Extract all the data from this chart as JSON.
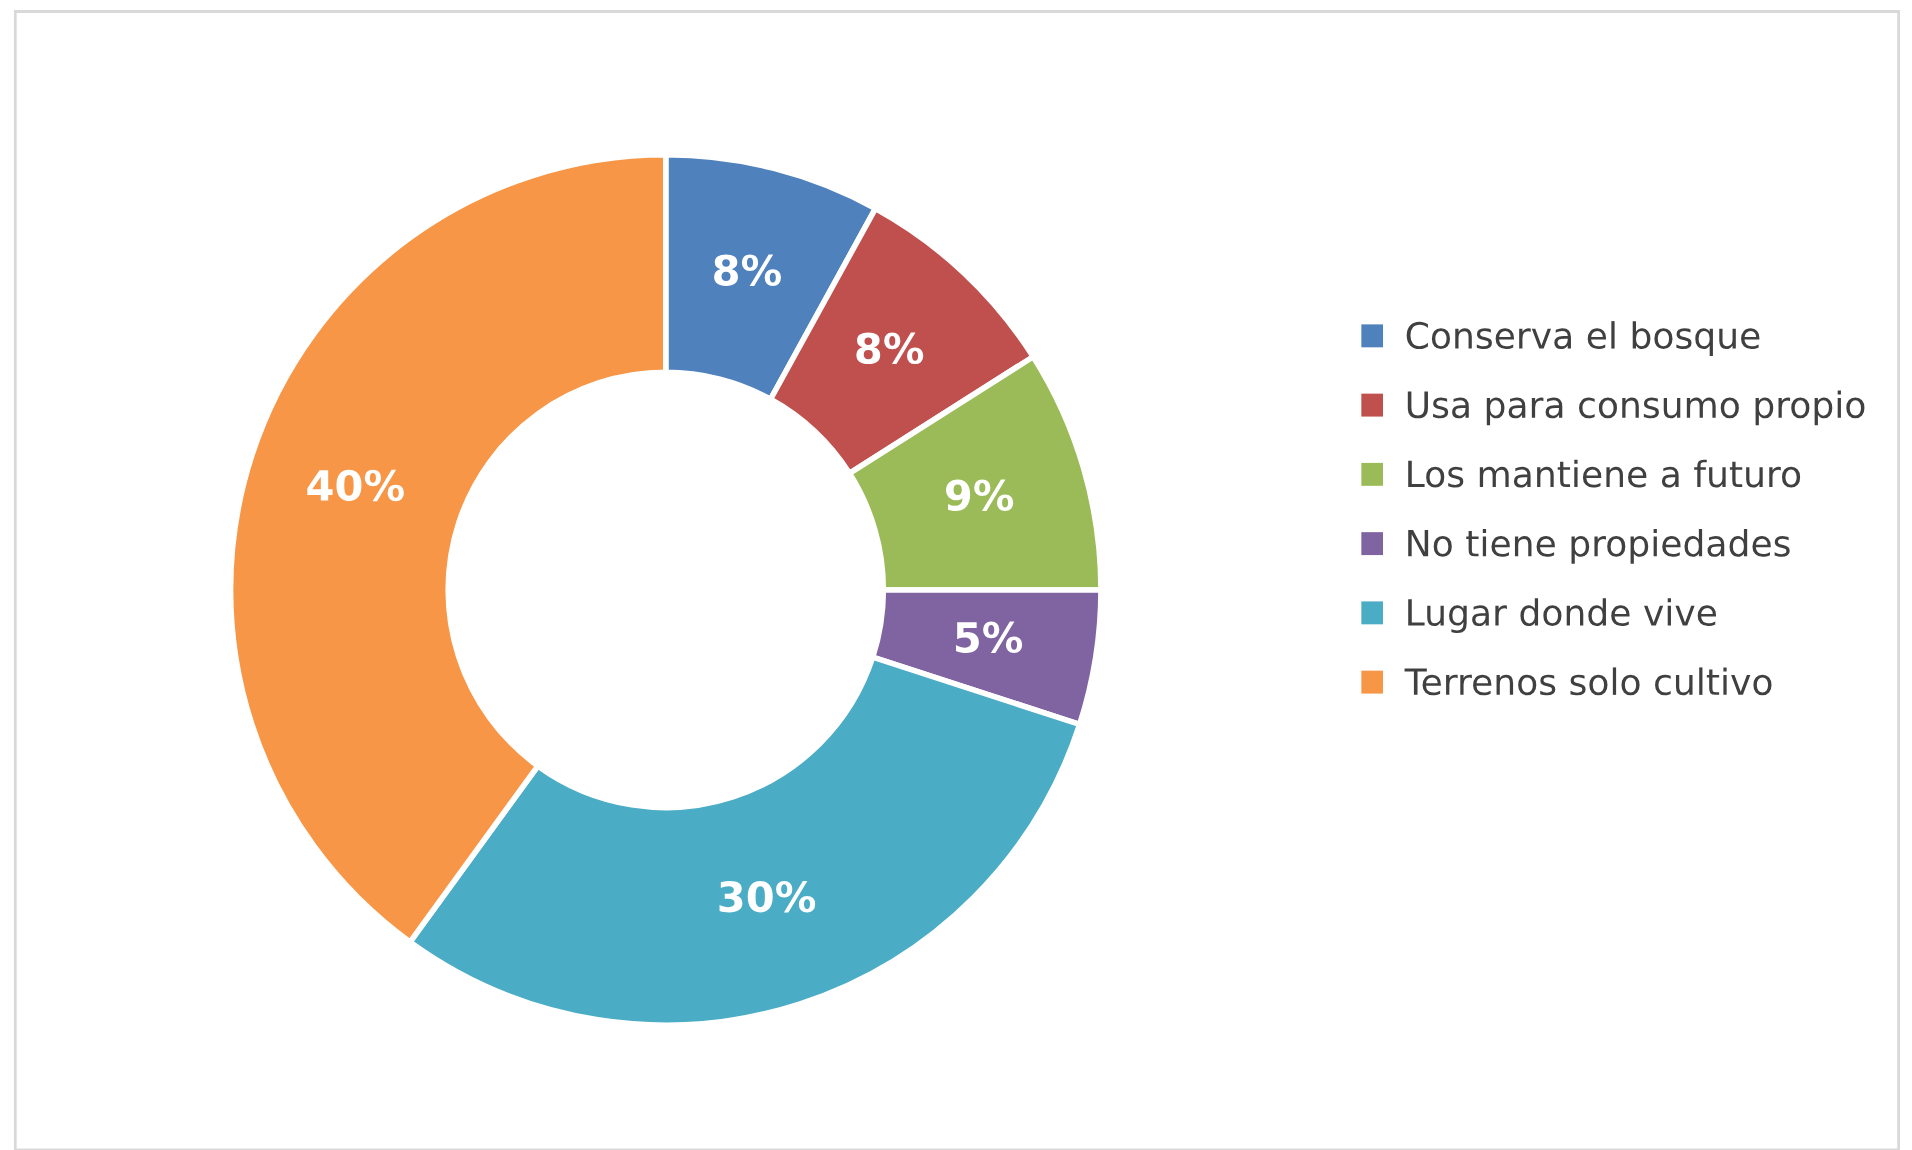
{
  "chart_data": {
    "type": "donut",
    "categories": [
      "Conserva el bosque",
      "Usa para consumo propio",
      "Los mantiene a futuro",
      "No tiene propiedades",
      "Lugar donde vive",
      "Terrenos solo cultivo"
    ],
    "values": [
      8,
      8,
      9,
      5,
      30,
      40
    ],
    "value_labels": [
      "8%",
      "8%",
      "9%",
      "5%",
      "30%",
      "40%"
    ],
    "colors": [
      "#4f81bd",
      "#c0504d",
      "#9bbb59",
      "#8064a2",
      "#4bacc6",
      "#f79646"
    ],
    "legend": "right"
  }
}
